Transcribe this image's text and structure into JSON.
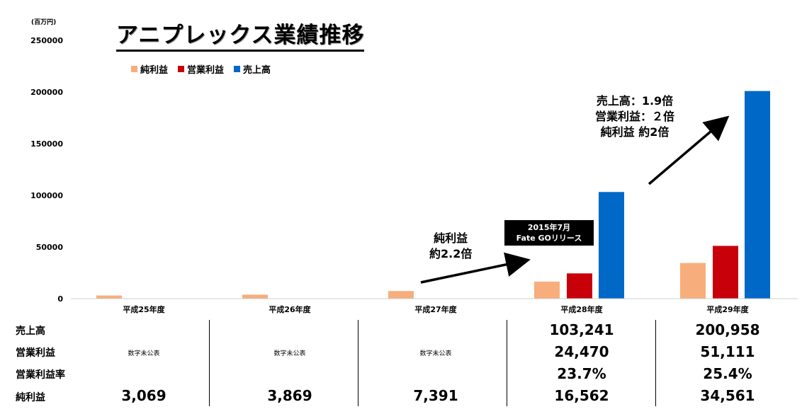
{
  "header": {
    "title": "アニプレックス業績推移",
    "unit": "(百万円)"
  },
  "legend": [
    {
      "label": "純利益",
      "color": "#f7ae7c"
    },
    {
      "label": "営業利益",
      "color": "#c8000a"
    },
    {
      "label": "売上高",
      "color": "#0068c6"
    }
  ],
  "annotations": {
    "growth_2_2": {
      "line1": "純利益",
      "line2": "約2.2倍"
    },
    "release": {
      "line1": "2015年7月",
      "line2": "Fate GOリリース"
    },
    "growth_final": {
      "line1": "売上高：1.9倍",
      "line2": "営業利益：２倍",
      "line3": "純利益 約2倍"
    }
  },
  "chart_data": {
    "type": "bar",
    "title": "アニプレックス業績推移",
    "ylabel": "(百万円)",
    "ylim": [
      0,
      250000
    ],
    "yticks": [
      "0",
      "50000",
      "100000",
      "150000",
      "200000",
      "250000"
    ],
    "grid": false,
    "legend_position": "top-left",
    "categories": [
      "平成25年度",
      "平成26年度",
      "平成27年度",
      "平成28年度",
      "平成29年度"
    ],
    "series": [
      {
        "name": "純利益",
        "color": "#f7ae7c",
        "values": [
          3069,
          3869,
          7391,
          16562,
          34561
        ]
      },
      {
        "name": "営業利益",
        "color": "#c8000a",
        "values": [
          null,
          null,
          null,
          24470,
          51111
        ]
      },
      {
        "name": "売上高",
        "color": "#0068c6",
        "values": [
          null,
          null,
          null,
          103241,
          200958
        ]
      }
    ]
  },
  "table": {
    "row_labels": [
      "売上高",
      "営業利益",
      "営業利益率",
      "純利益"
    ],
    "undisclosed": "数字未公表",
    "rows": {
      "sales": [
        "",
        "",
        "",
        "103,241",
        "200,958"
      ],
      "operating": [
        "数字未公表",
        "数字未公表",
        "数字未公表",
        "24,470",
        "51,111"
      ],
      "margin": [
        "",
        "",
        "",
        "23.7%",
        "25.4%"
      ],
      "net": [
        "3,069",
        "3,869",
        "7,391",
        "16,562",
        "34,561"
      ]
    }
  }
}
